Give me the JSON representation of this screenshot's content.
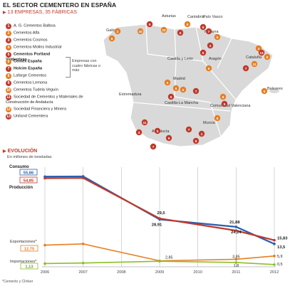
{
  "header": {
    "title": "EL SECTOR CEMENTERO EN ESPAÑA",
    "subtitle": "13 EMPRESAS, 35 FÁBRICAS"
  },
  "companies": [
    {
      "n": "1",
      "name": "A. G. Cementos Balboa",
      "bold": false
    },
    {
      "n": "2",
      "name": "Cementos Alfa",
      "bold": false
    },
    {
      "n": "3",
      "name": "Cementos Cosmos",
      "bold": false
    },
    {
      "n": "4",
      "name": "Cementos Molins Industrial",
      "bold": false
    },
    {
      "n": "5",
      "name": "Cementos Portland Valderrivas",
      "bold": true
    },
    {
      "n": "6",
      "name": "Cemex España",
      "bold": true
    },
    {
      "n": "7",
      "name": "Holcim España",
      "bold": true
    },
    {
      "n": "8",
      "name": "Lafarge Cementos",
      "bold": false
    },
    {
      "n": "9",
      "name": "Cementos Lemona",
      "bold": false
    },
    {
      "n": "10",
      "name": "Cementos Tudela Veguín",
      "bold": false
    },
    {
      "n": "11",
      "name": "Sociedad de Cementos y Materiales de Construcción de Andalucía",
      "bold": false
    },
    {
      "n": "12",
      "name": "Sociedad Financiera y Minera",
      "bold": false
    },
    {
      "n": "13",
      "name": "Uniland Cementera",
      "bold": false
    }
  ],
  "bracket_note": "Empresas con cuatro fábricas o más",
  "map": {
    "regions": [
      "Asturias",
      "Cantabria",
      "País Vasco",
      "Galicia",
      "Navarra",
      "Castilla y León",
      "Aragón",
      "Cataluña",
      "Madrid",
      "Extremadura",
      "Castilla-La Mancha",
      "Comunidad Valenciana",
      "Baleares",
      "Murcia",
      "Andalucía"
    ],
    "colors": {
      "land": "#d9d9d9",
      "sea": "#ffffff",
      "marker": "#c0392b",
      "marker_light": "#e67e22"
    }
  },
  "chart_section": {
    "title": "EVOLUCIÓN",
    "units": "En millones de toneladas",
    "footnote": "*Cemento y Clínker"
  },
  "chart_data": {
    "type": "line",
    "x": [
      "2006",
      "2007",
      "2008",
      "2009",
      "2010",
      "2011",
      "2012"
    ],
    "series": [
      {
        "name": "Consumo",
        "color": "#2a5fb0",
        "values": [
          55.86,
          56.0,
          null,
          28.91,
          null,
          24.24,
          13.5
        ]
      },
      {
        "name": "Producción",
        "color": "#c0392b",
        "values": [
          54.85,
          55.0,
          null,
          29.5,
          null,
          21.88,
          15.83
        ]
      },
      {
        "name": "Exportaciones*",
        "color": "#e67e22",
        "values": [
          12.75,
          13.5,
          null,
          2.85,
          null,
          3.85,
          5.9
        ]
      },
      {
        "name": "Importaciones*",
        "color": "#8cbf26",
        "values": [
          1.13,
          1.5,
          null,
          2.6,
          null,
          1.8,
          0.5
        ]
      }
    ],
    "labels": {
      "consumo_2006": "55,86",
      "produccion_2006": "54,85",
      "exportaciones_2006": "12,75",
      "importaciones_2006": "1,13",
      "consumo_2009": "28,91",
      "produccion_2009": "29,5",
      "consumo_2011": "24,24",
      "produccion_2011": "21,88",
      "consumo_2012": "13,5",
      "produccion_2012": "15,83",
      "export_2009": "2,85",
      "export_2011": "3,85",
      "import_2011": "1,8",
      "export_2012": "5,9",
      "import_2012": "0,5"
    },
    "ylim": [
      0,
      60
    ],
    "grid": "vertical"
  }
}
